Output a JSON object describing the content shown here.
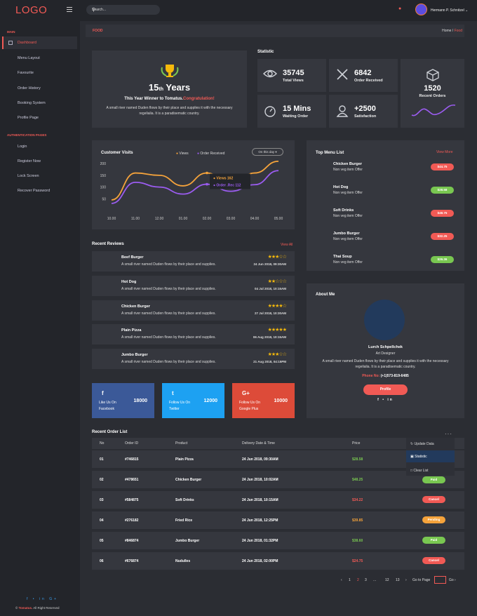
{
  "header": {
    "logo": "LOGO",
    "search_placeholder": "Search...",
    "user_name": "Hermann P. Schnitzel ⌄"
  },
  "sidebar": {
    "main_heading": "MAIN",
    "items": [
      "Dashboard",
      "Menu Layout",
      "Favourite",
      "Order History",
      "Booking System",
      "Profile Page"
    ],
    "auth_heading": "AUTHENTICATION PAGES",
    "auth_items": [
      "Login",
      "Register Now",
      "Lock Screen",
      "Recover Password"
    ],
    "social_icons": "f • in G+",
    "copyright_brand": "Tomatus.",
    "copyright_rest": " All Right Reserved"
  },
  "breadcrumb": {
    "page": "FOOD",
    "home": "Home",
    "current": "Food"
  },
  "winner": {
    "years_num": "15",
    "years_sup": "th",
    "years_word": "Years",
    "line": "This Year Winner to Tomatus.",
    "congrats": "Congratulation!",
    "desc": "A small river named Duden flows by their place and supplies it with the necessary regelialia. It is a paradisematic country."
  },
  "statistic": {
    "title": "Statistic",
    "items": [
      {
        "value": "35745",
        "label": "Total Views",
        "color": "#f15a55"
      },
      {
        "value": "6842",
        "label": "Order Received",
        "color": "#79c751"
      },
      {
        "value": "15 Mins",
        "label": "Waiting Order",
        "color": "#6a5cf0"
      },
      {
        "value": "+2500",
        "label": "Satisfaction",
        "color": "#f5a33b"
      }
    ],
    "recent_value": "1520",
    "recent_label": "Recent Orders"
  },
  "visits": {
    "title": "Customer Visits",
    "legend_views": "Views",
    "legend_orders": "Order Received",
    "filter": "On this day ▾",
    "tooltip_views": "Views 162",
    "tooltip_orders": "Order .Rec 112"
  },
  "chart_data": {
    "type": "line",
    "x": [
      "10.00",
      "11.00",
      "12.00",
      "01.00",
      "02.00",
      "03.00",
      "04.00",
      "05.00"
    ],
    "series": [
      {
        "name": "Views",
        "color": "#f5a33b",
        "values": [
          45,
          160,
          150,
          105,
          160,
          105,
          160,
          210
        ]
      },
      {
        "name": "Order Received",
        "color": "#9b5cf0",
        "values": [
          30,
          120,
          100,
          70,
          112,
          82,
          110,
          170
        ]
      }
    ],
    "ylim": [
      0,
      220
    ],
    "yticks": [
      50,
      100,
      150,
      200
    ]
  },
  "menu": {
    "title": "Top Menu List",
    "view_more": "View More",
    "items": [
      {
        "name": "Chicken Burger",
        "desc": "Non veg item Offer",
        "price": "$44.75",
        "color": "#f15a55"
      },
      {
        "name": "Hot Dog",
        "desc": "Non veg item Offer",
        "price": "$28.58",
        "color": "#79c751"
      },
      {
        "name": "Soft Drinks",
        "desc": "Non veg item Offer",
        "price": "$48.75",
        "color": "#f15a55"
      },
      {
        "name": "Jumbo Burger",
        "desc": "Non veg item Offer",
        "price": "$32.25",
        "color": "#f15a55"
      },
      {
        "name": "Thai Soup",
        "desc": "Non veg item Offer",
        "price": "$26.36",
        "color": "#79c751"
      }
    ]
  },
  "reviews": {
    "title": "Recent Reviews",
    "view_all": "View All",
    "items": [
      {
        "name": "Beef Burger",
        "desc": "A small river named Duden flows by their place and supplies.",
        "stars": "★★★☆☆",
        "date": "24 Jun 2018, 09:30AM"
      },
      {
        "name": "Hot Dog",
        "desc": "A small river named Duden flows by their place and supplies.",
        "stars": "★★☆☆☆",
        "date": "04 Jul 2018, 10:15AM"
      },
      {
        "name": "Chicken Burger",
        "desc": "A small river named Duden flows by their place and supplies.",
        "stars": "★★★★☆",
        "date": "27 Jul 2018, 10:30AM"
      },
      {
        "name": "Plain Pizza",
        "desc": "A small river named Duden flows by their place and supplies.",
        "stars": "★★★★★",
        "date": "06 Aug 2018, 10:15AM"
      },
      {
        "name": "Jumbo Burger",
        "desc": "A small river named Duden flows by their place and supplies.",
        "stars": "★★★☆☆",
        "date": "21 Aug 2018, 04:15PM"
      }
    ]
  },
  "about": {
    "title": "About Me",
    "name": "Lurch Schpellchek",
    "role": "Art Designer",
    "desc": "A small river named Duden flows by their place and supplies it with the necessary regelialia. It is a paradisematic country.",
    "phone_label": "Phone No:",
    "phone": " (+1)573-819-6485",
    "button": "Profile",
    "icons": "f • in"
  },
  "social": [
    {
      "icon": "f",
      "label1": "Like Us On",
      "label2": "Facebook",
      "count": "18000",
      "color": "#3b5998"
    },
    {
      "icon": "t",
      "label1": "Follow Us On",
      "label2": "Twitter",
      "count": "12000",
      "color": "#1da1f2"
    },
    {
      "icon": "G+",
      "label1": "Follow Us On",
      "label2": "Google Plus",
      "count": "10000",
      "color": "#dd4b39"
    }
  ],
  "orders": {
    "title": "Recent Order List",
    "headers": [
      "No",
      "Order ID",
      "Product",
      "Delivery Date & Time",
      "Price"
    ],
    "rows": [
      {
        "no": "01",
        "id": "#746815",
        "product": "Plain Pizza",
        "date": "24 Jun 2018, 09:30AM",
        "price": "$28.58",
        "pcolor": "#79c751",
        "status": "",
        "scolor": ""
      },
      {
        "no": "02",
        "id": "#478651",
        "product": "Chicken Burger",
        "date": "24 Jun 2018, 10:02AM",
        "price": "$48.25",
        "pcolor": "#79c751",
        "status": "Paid",
        "scolor": "#79c751"
      },
      {
        "no": "03",
        "id": "#584875",
        "product": "Soft Drinks",
        "date": "24 Jun 2018, 10:15AM",
        "price": "$34.22",
        "pcolor": "#f15a55",
        "status": "Cancel",
        "scolor": "#f15a55"
      },
      {
        "no": "04",
        "id": "#276182",
        "product": "Fried Rice",
        "date": "24 Jun 2018, 12:25PM",
        "price": "$39.85",
        "pcolor": "#f5a33b",
        "status": "Pending",
        "scolor": "#f5a33b"
      },
      {
        "no": "05",
        "id": "#846874",
        "product": "Jumbo Burger",
        "date": "24 Jun 2018, 01:32PM",
        "price": "$38.60",
        "pcolor": "#79c751",
        "status": "Paid",
        "scolor": "#79c751"
      },
      {
        "no": "06",
        "id": "#676874",
        "product": "Nudulles",
        "date": "24 Jun 2018, 02:00PM",
        "price": "$24.75",
        "pcolor": "#f15a55",
        "status": "Cancel",
        "scolor": "#f15a55"
      }
    ],
    "dropdown": [
      "Update Data",
      "Statistic",
      "Clear List"
    ]
  },
  "pagination": {
    "prev": "‹",
    "pages": [
      "1",
      "2",
      "3",
      "...",
      "12",
      "13"
    ],
    "next": "›",
    "goto": "Go to Page",
    "go": "Go ›"
  }
}
